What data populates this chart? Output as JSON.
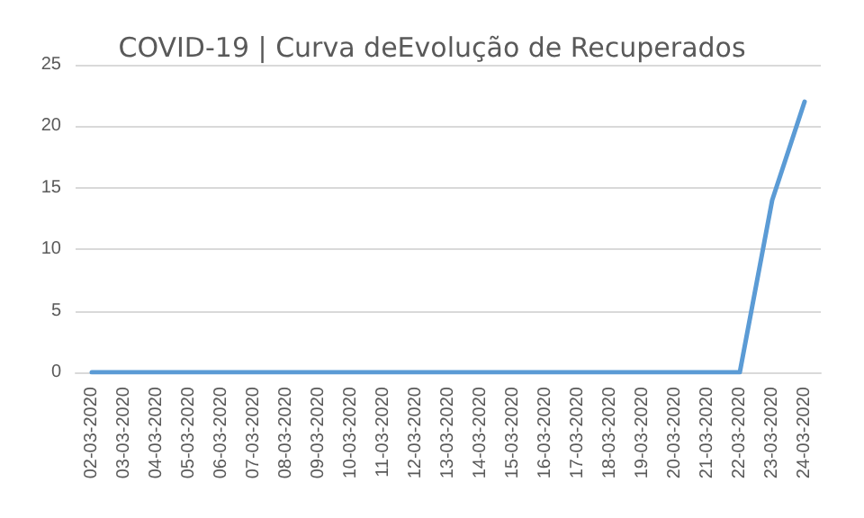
{
  "chart_data": {
    "type": "line",
    "title": "COVID-19 | Curva deEvolução de Recuperados",
    "categories": [
      "02-03-2020",
      "03-03-2020",
      "04-03-2020",
      "05-03-2020",
      "06-03-2020",
      "07-03-2020",
      "08-03-2020",
      "09-03-2020",
      "10-03-2020",
      "11-03-2020",
      "12-03-2020",
      "13-03-2020",
      "14-03-2020",
      "15-03-2020",
      "16-03-2020",
      "17-03-2020",
      "18-03-2020",
      "19-03-2020",
      "20-03-2020",
      "21-03-2020",
      "22-03-2020",
      "23-03-2020",
      "24-03-2020"
    ],
    "series": [
      {
        "color": "#5b9bd5",
        "values": [
          0,
          0,
          0,
          0,
          0,
          0,
          0,
          0,
          0,
          0,
          0,
          0,
          0,
          0,
          0,
          0,
          0,
          0,
          0,
          0,
          0,
          14,
          22
        ]
      }
    ],
    "ylim": [
      0,
      25
    ],
    "yticks": [
      0,
      5,
      10,
      15,
      20,
      25
    ],
    "grid": "y",
    "marker": "none",
    "line_style": "solid"
  }
}
